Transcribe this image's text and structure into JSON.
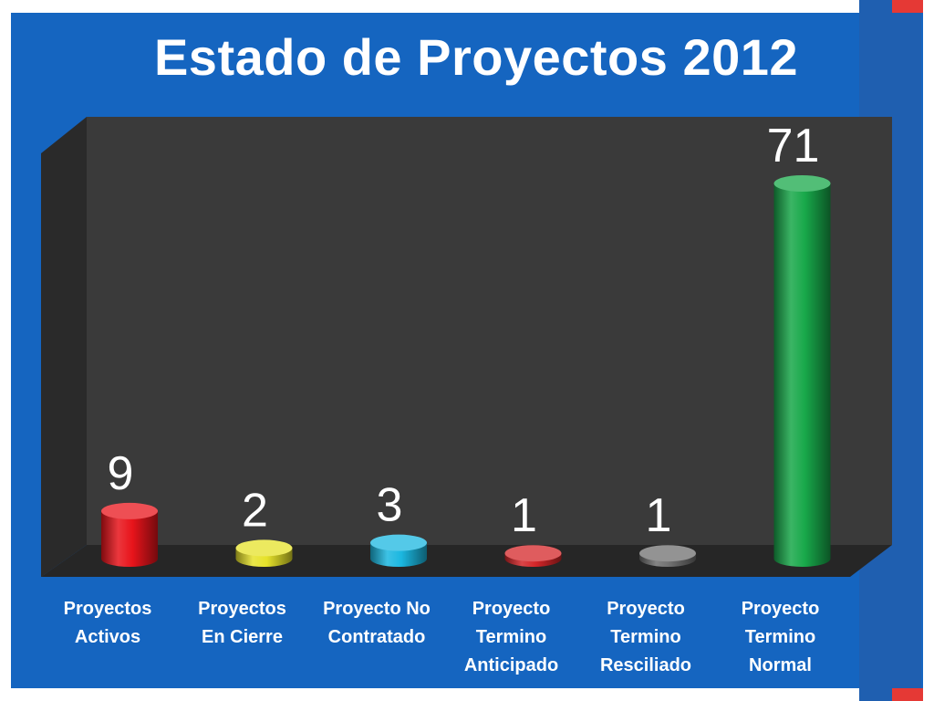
{
  "slide": {
    "title": "Estado de Proyectos 2012"
  },
  "colors": {
    "background": "#1565c0",
    "plot_back_wall": "#3a3a3a",
    "plot_side_wall": "#2a2a2a",
    "plot_floor": "#262626",
    "text": "#ffffff"
  },
  "chart_data": {
    "type": "bar",
    "style": "3d-cylinder",
    "title": "Estado de Proyectos 2012",
    "xlabel": "",
    "ylabel": "",
    "ylim": [
      0,
      75
    ],
    "grid": false,
    "legend": "none",
    "data_labels": true,
    "categories": [
      [
        "Proyectos",
        "Activos"
      ],
      [
        "Proyectos",
        "En Cierre"
      ],
      [
        "Proyecto No",
        "Contratado"
      ],
      [
        "Proyecto",
        "Termino",
        "Anticipado"
      ],
      [
        "Proyecto",
        "Termino",
        "Resciliado"
      ],
      [
        "Proyecto",
        "Termino",
        "Normal"
      ]
    ],
    "values": [
      9,
      2,
      3,
      1,
      1,
      71
    ],
    "value_labels": [
      "9",
      "2",
      "3",
      "1",
      "1",
      "71"
    ],
    "bar_colors": [
      "#e8141b",
      "#e6e22a",
      "#1bb7e0",
      "#d42528",
      "#6f6f6f",
      "#18a84a"
    ]
  }
}
